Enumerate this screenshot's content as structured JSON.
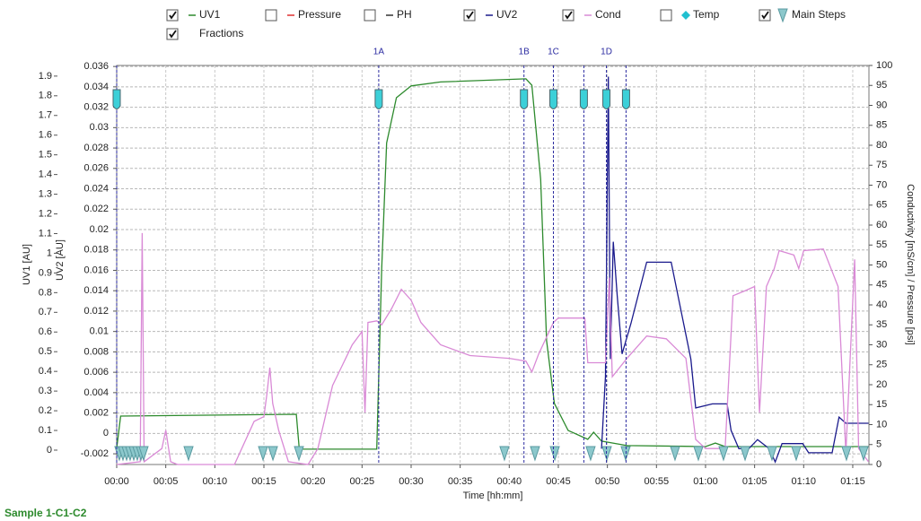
{
  "chart_data": {
    "type": "line",
    "xlabel": "Time [hh:mm]",
    "ylabel": "UV1 [AU]",
    "y2label": "UV2 [AU]",
    "y3label": "Conductivity [mS/cm] / Pressure [psi]",
    "footer": "Sample 1-C1-C2",
    "xlim": [
      0,
      76.65
    ],
    "xticks": [
      {
        "value": 0,
        "label": "00:00"
      },
      {
        "value": 5,
        "label": "00:05"
      },
      {
        "value": 10,
        "label": "00:10"
      },
      {
        "value": 15,
        "label": "00:15"
      },
      {
        "value": 20,
        "label": "00:20"
      },
      {
        "value": 25,
        "label": "00:25"
      },
      {
        "value": 30,
        "label": "00:30"
      },
      {
        "value": 35,
        "label": "00:35"
      },
      {
        "value": 40,
        "label": "00:40"
      },
      {
        "value": 45,
        "label": "00:45"
      },
      {
        "value": 50,
        "label": "00:50"
      },
      {
        "value": 55,
        "label": "00:55"
      },
      {
        "value": 60,
        "label": "01:00"
      },
      {
        "value": 65,
        "label": "01:05"
      },
      {
        "value": 70,
        "label": "01:10"
      },
      {
        "value": 75,
        "label": "01:15"
      }
    ],
    "ylim": [
      -0.073,
      1.954
    ],
    "yticks": [
      0,
      0.1,
      0.2,
      0.3,
      0.4,
      0.5,
      0.6,
      0.7,
      0.8,
      0.9,
      1,
      1.1,
      1.2,
      1.3,
      1.4,
      1.5,
      1.6,
      1.7,
      1.8,
      1.9
    ],
    "y2lim": [
      -0.00305,
      0.0361
    ],
    "y2ticks": [
      -0.002,
      0,
      0.002,
      0.004,
      0.006,
      0.008,
      0.01,
      0.012,
      0.014,
      0.016,
      0.018,
      0.02,
      0.022,
      0.024,
      0.026,
      0.028,
      0.03,
      0.032,
      0.034,
      0.036
    ],
    "y3lim": [
      0,
      100
    ],
    "y3ticks": [
      0,
      5,
      10,
      15,
      20,
      25,
      30,
      35,
      40,
      45,
      50,
      55,
      60,
      65,
      70,
      75,
      80,
      85,
      90,
      95,
      100
    ],
    "grid": true,
    "series": [
      {
        "name": "UV1",
        "style": "line",
        "checked": true,
        "color": "#2d8a2d",
        "axis": "y",
        "x": [
          0,
          0.4,
          18.3,
          18.6,
          26.5,
          27.0,
          27.5,
          28.5,
          30,
          33,
          41.7,
          42.3,
          43.2,
          43.8,
          44.6,
          46,
          48,
          48.6,
          49.4,
          52,
          60,
          61,
          62,
          76.6
        ],
        "values": [
          0.009,
          0.173,
          0.182,
          0.005,
          0.005,
          0.92,
          1.56,
          1.79,
          1.85,
          1.87,
          1.886,
          1.854,
          1.376,
          0.556,
          0.237,
          0.1,
          0.055,
          0.091,
          0.046,
          0.023,
          0.018,
          0.036,
          0.018,
          0.018
        ]
      },
      {
        "name": "Pressure",
        "style": "line",
        "checked": false,
        "color": "#e03030"
      },
      {
        "name": "PH",
        "style": "line",
        "checked": false,
        "color": "#333333"
      },
      {
        "name": "UV2",
        "style": "line",
        "checked": true,
        "color": "#1a1a8c",
        "axis": "y2",
        "x": [
          49.4,
          49.8,
          50.1,
          50.3,
          50.6,
          51.0,
          51.5,
          52.4,
          54,
          56.5,
          58.5,
          59,
          60.7,
          62.2,
          62.6,
          63.4,
          64.4,
          65.3,
          66.5,
          67.1,
          67.8,
          69.9,
          70.5,
          72.9,
          73.6,
          74.3,
          76.6
        ],
        "values": [
          -0.0015,
          0.0056,
          0.035,
          0.0073,
          0.0188,
          0.0135,
          0.0078,
          0.0108,
          0.0168,
          0.0168,
          0.0073,
          0.0025,
          0.0029,
          0.0029,
          0.0003,
          -0.0015,
          -0.0015,
          -0.0006,
          -0.0015,
          -0.0028,
          -0.001,
          -0.001,
          -0.0019,
          -0.0019,
          0.0016,
          0.001,
          0.001
        ]
      },
      {
        "name": "Cond",
        "style": "line",
        "checked": true,
        "color": "#d98ad6",
        "axis": "y3",
        "x": [
          0,
          2.4,
          2.6,
          2.8,
          4.6,
          5,
          5.5,
          6.2,
          12,
          14,
          15,
          15.3,
          15.6,
          15.9,
          16.5,
          17.5,
          19.5,
          20.5,
          22,
          24,
          25,
          25.3,
          25.6,
          26.5,
          27,
          28,
          29,
          30,
          31,
          33,
          36,
          40,
          41.7,
          42.3,
          43,
          44.5,
          45,
          47.7,
          48,
          49.8,
          50.2,
          50.5,
          52,
          54,
          56,
          58,
          59,
          60,
          62,
          62.8,
          64,
          65,
          65.5,
          66.2,
          67,
          67.5,
          69,
          69.5,
          70,
          72,
          73.5,
          74.3,
          75.2,
          75.6,
          76.6
        ],
        "values": [
          0,
          0.7,
          58,
          0.7,
          4,
          8.6,
          0.7,
          0,
          0,
          10.8,
          12,
          17.6,
          24.3,
          15.3,
          8.6,
          0.7,
          0,
          4,
          19.8,
          30,
          33.3,
          13,
          35.6,
          36,
          35,
          39,
          43.9,
          41.2,
          35.6,
          30,
          27.3,
          26.6,
          25.9,
          23.2,
          27.7,
          35.6,
          36.7,
          36.7,
          25.5,
          25.5,
          46.8,
          22,
          26.6,
          32.2,
          31.5,
          26.6,
          6.3,
          4,
          4,
          42.3,
          43.5,
          44.6,
          13,
          44.6,
          49.1,
          53.6,
          52.5,
          49.1,
          53.6,
          54,
          44.6,
          2.9,
          51.4,
          4,
          0.7
        ]
      },
      {
        "name": "Temp",
        "style": "diamond",
        "checked": false,
        "color": "#20c0d0"
      },
      {
        "name": "Main Steps",
        "style": "triangle",
        "checked": true,
        "color": "#8cc8cc",
        "x": [
          0.27,
          0.64,
          1.01,
          1.37,
          1.74,
          2.1,
          2.47,
          2.74,
          7.32,
          14.91,
          15.92,
          18.57,
          39.51,
          42.62,
          44.64,
          48.29,
          49.94,
          51.86,
          56.89,
          59.27,
          61.83,
          64.03,
          66.77,
          69.24,
          74.36,
          76.1
        ]
      },
      {
        "name": "Fractions",
        "style": "fraction",
        "checked": true,
        "color": "#2a2aa0",
        "x": [
          0,
          26.7,
          41.5,
          44.5,
          47.6,
          49.9,
          51.9
        ],
        "labels": [
          null,
          "1A",
          "1B",
          "1C",
          null,
          "1D",
          null
        ]
      }
    ]
  }
}
